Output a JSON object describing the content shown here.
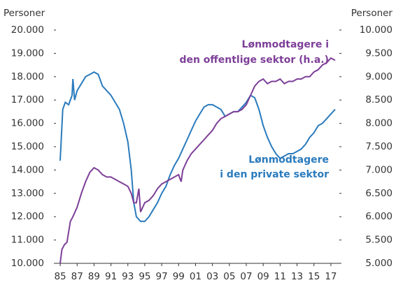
{
  "chart_data": {
    "type": "line",
    "y_label": "Personer",
    "y2_label": "Personer",
    "annotations": [
      {
        "lines": [
          "Lønmodtagere i",
          "den offentlige sektor (h.a.)"
        ],
        "series": 1
      },
      {
        "lines": [
          "Lønmodtagere",
          "i den private sektor"
        ],
        "series": 0
      }
    ],
    "xlim": [
      1984.5,
      2018
    ],
    "xticks": [
      {
        "value": 1985,
        "label": "85"
      },
      {
        "value": 1987,
        "label": "87"
      },
      {
        "value": 1989,
        "label": "89"
      },
      {
        "value": 1991,
        "label": "91"
      },
      {
        "value": 1993,
        "label": "93"
      },
      {
        "value": 1995,
        "label": "95"
      },
      {
        "value": 1997,
        "label": "97"
      },
      {
        "value": 1999,
        "label": "99"
      },
      {
        "value": 2001,
        "label": "01"
      },
      {
        "value": 2003,
        "label": "03"
      },
      {
        "value": 2005,
        "label": "05"
      },
      {
        "value": 2007,
        "label": "07"
      },
      {
        "value": 2009,
        "label": "09"
      },
      {
        "value": 2011,
        "label": "11"
      },
      {
        "value": 2013,
        "label": "13"
      },
      {
        "value": 2015,
        "label": "15"
      },
      {
        "value": 2017,
        "label": "17"
      }
    ],
    "ylim": [
      10000,
      20000
    ],
    "yticks": [
      {
        "value": 10000,
        "label": "10.000"
      },
      {
        "value": 11000,
        "label": "11.000"
      },
      {
        "value": 12000,
        "label": "12.000"
      },
      {
        "value": 13000,
        "label": "13.000"
      },
      {
        "value": 14000,
        "label": "14.000"
      },
      {
        "value": 15000,
        "label": "15.000"
      },
      {
        "value": 16000,
        "label": "16.000"
      },
      {
        "value": 17000,
        "label": "17.000"
      },
      {
        "value": 18000,
        "label": "18.000"
      },
      {
        "value": 19000,
        "label": "19.000"
      },
      {
        "value": 20000,
        "label": "20.000"
      }
    ],
    "y2lim": [
      5000,
      10000
    ],
    "y2ticks": [
      {
        "value": 5000,
        "label": "5.000"
      },
      {
        "value": 5500,
        "label": "5.500"
      },
      {
        "value": 6000,
        "label": "6.000"
      },
      {
        "value": 6500,
        "label": "6.500"
      },
      {
        "value": 7000,
        "label": "7.000"
      },
      {
        "value": 7500,
        "label": "7.500"
      },
      {
        "value": 8000,
        "label": "8.000"
      },
      {
        "value": 8500,
        "label": "8.500"
      },
      {
        "value": 9000,
        "label": "9.000"
      },
      {
        "value": 9500,
        "label": "9.500"
      },
      {
        "value": 10000,
        "label": "10.000"
      }
    ],
    "series": [
      {
        "name": "Lønmodtagere i den private sektor",
        "color": "#2a7bbd",
        "axis": "y",
        "x": [
          1985,
          1985.3,
          1985.6,
          1986,
          1986.4,
          1986.5,
          1986.7,
          1987,
          1987.5,
          1988,
          1988.5,
          1989,
          1989.5,
          1990,
          1990.5,
          1991,
          1991.5,
          1992,
          1992.5,
          1993,
          1993.4,
          1993.7,
          1994,
          1994.5,
          1995,
          1995.5,
          1996,
          1996.5,
          1997,
          1997.5,
          1998,
          1998.5,
          1999,
          1999.5,
          2000,
          2000.5,
          2001,
          2001.5,
          2002,
          2002.5,
          2003,
          2003.5,
          2004,
          2004.5,
          2005,
          2005.5,
          2006,
          2006.5,
          2007,
          2007.5,
          2008,
          2008.5,
          2009,
          2009.5,
          2010,
          2010.5,
          2011,
          2011.5,
          2012,
          2012.5,
          2013,
          2013.5,
          2014,
          2014.5,
          2015,
          2015.5,
          2016,
          2016.5,
          2017,
          2017.5
        ],
        "values": [
          14400,
          16600,
          16900,
          16800,
          17200,
          17900,
          17000,
          17400,
          17700,
          18000,
          18100,
          18200,
          18100,
          17600,
          17400,
          17200,
          16900,
          16600,
          16000,
          15200,
          14000,
          12600,
          12000,
          11800,
          11800,
          12000,
          12300,
          12600,
          13000,
          13300,
          13800,
          14200,
          14500,
          14900,
          15300,
          15700,
          16100,
          16400,
          16700,
          16800,
          16800,
          16700,
          16600,
          16300,
          16400,
          16500,
          16500,
          16700,
          16900,
          17200,
          17100,
          16600,
          15900,
          15400,
          15000,
          14700,
          14500,
          14600,
          14700,
          14700,
          14800,
          14900,
          15100,
          15400,
          15600,
          15900,
          16000,
          16200,
          16400,
          16600
        ]
      },
      {
        "name": "Lønmodtagere i den offentlige sektor",
        "color": "#7d3f98",
        "axis": "y2",
        "x": [
          1985,
          1985.2,
          1985.5,
          1985.8,
          1986.2,
          1986.5,
          1987,
          1987.5,
          1988,
          1988.5,
          1989,
          1989.5,
          1990,
          1990.5,
          1991,
          1991.5,
          1992,
          1992.5,
          1993,
          1993.4,
          1993.7,
          1994,
          1994.3,
          1994.5,
          1995,
          1995.5,
          1996,
          1996.5,
          1997,
          1997.5,
          1998,
          1998.5,
          1999,
          1999.3,
          1999.5,
          2000,
          2000.5,
          2001,
          2001.5,
          2002,
          2002.5,
          2003,
          2003.5,
          2004,
          2004.5,
          2005,
          2005.5,
          2006,
          2006.5,
          2007,
          2007.5,
          2008,
          2008.5,
          2009,
          2009.5,
          2010,
          2010.5,
          2011,
          2011.5,
          2012,
          2012.5,
          2013,
          2013.5,
          2014,
          2014.5,
          2015,
          2015.5,
          2016,
          2016.5,
          2017,
          2017.5
        ],
        "values": [
          5000,
          5300,
          5400,
          5450,
          5900,
          6000,
          6200,
          6500,
          6750,
          6950,
          7050,
          7000,
          6900,
          6850,
          6850,
          6800,
          6750,
          6700,
          6650,
          6500,
          6300,
          6300,
          6600,
          6100,
          6300,
          6350,
          6450,
          6600,
          6700,
          6750,
          6800,
          6850,
          6900,
          6750,
          7000,
          7200,
          7350,
          7450,
          7550,
          7650,
          7750,
          7850,
          8000,
          8100,
          8150,
          8200,
          8250,
          8250,
          8300,
          8400,
          8600,
          8800,
          8900,
          8950,
          8850,
          8900,
          8900,
          8950,
          8850,
          8900,
          8900,
          8950,
          8950,
          9000,
          9000,
          9100,
          9150,
          9250,
          9300,
          9400,
          9350
        ]
      }
    ]
  }
}
